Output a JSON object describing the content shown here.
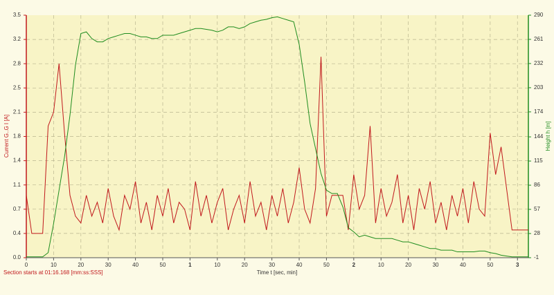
{
  "chart_data": {
    "type": "line",
    "y_label": "Current G..G  I  [A]",
    "y2_label": "Height  h  [m]",
    "x_label": "Time  t  [sec, min]",
    "footer": "Section starts at  01:16.168 [mm:ss:SSS]",
    "grid": true,
    "xlim": [
      0,
      184
    ],
    "xticks": [
      0,
      10,
      20,
      30,
      40,
      50,
      {
        "value": 60,
        "label": "1"
      },
      {
        "value": 70,
        "label": "10"
      },
      {
        "value": 80,
        "label": "20"
      },
      {
        "value": 90,
        "label": "30"
      },
      {
        "value": 100,
        "label": "40"
      },
      {
        "value": 110,
        "label": "50"
      },
      {
        "value": 120,
        "label": "2"
      },
      {
        "value": 130,
        "label": "10"
      },
      {
        "value": 140,
        "label": "20"
      },
      {
        "value": 150,
        "label": "30"
      },
      {
        "value": 160,
        "label": "40"
      },
      {
        "value": 170,
        "label": "50"
      },
      {
        "value": 180,
        "label": "3"
      }
    ],
    "ylim": [
      0,
      3.5
    ],
    "yticks": [
      {
        "value": 0,
        "label": "0.0"
      },
      {
        "value": 0.35,
        "label": "0.4"
      },
      0.7,
      {
        "value": 1.05,
        "label": "1.1"
      },
      1.4,
      {
        "value": 1.75,
        "label": "1.8"
      },
      2.1,
      {
        "value": 2.45,
        "label": "2.5"
      },
      2.8,
      {
        "value": 3.15,
        "label": "3.2"
      },
      3.5
    ],
    "y2lim": [
      -1,
      290
    ],
    "y2ticks": [
      -1,
      28,
      57,
      86,
      115,
      144,
      174,
      203,
      232,
      261,
      290
    ],
    "x": [
      0,
      2,
      4,
      6,
      8,
      10,
      12,
      14,
      16,
      18,
      20,
      22,
      24,
      26,
      28,
      30,
      32,
      34,
      36,
      38,
      40,
      42,
      44,
      46,
      48,
      50,
      52,
      54,
      56,
      58,
      60,
      62,
      64,
      66,
      68,
      70,
      72,
      74,
      76,
      78,
      80,
      82,
      84,
      86,
      88,
      90,
      92,
      94,
      96,
      98,
      100,
      102,
      104,
      106,
      108,
      110,
      112,
      114,
      116,
      118,
      120,
      122,
      124,
      126,
      128,
      130,
      132,
      134,
      136,
      138,
      140,
      142,
      144,
      146,
      148,
      150,
      152,
      154,
      156,
      158,
      160,
      162,
      164,
      166,
      168,
      170,
      172,
      174,
      176,
      178,
      180,
      182,
      184
    ],
    "series": [
      {
        "name": "Current",
        "color": "#c0171b",
        "axis": "y",
        "values": [
          0.9,
          0.35,
          0.35,
          0.35,
          1.9,
          2.1,
          2.8,
          1.8,
          0.9,
          0.6,
          0.5,
          0.9,
          0.6,
          0.8,
          0.5,
          1.0,
          0.6,
          0.4,
          0.9,
          0.7,
          1.1,
          0.5,
          0.8,
          0.4,
          0.9,
          0.6,
          1.0,
          0.5,
          0.8,
          0.7,
          0.4,
          1.1,
          0.6,
          0.9,
          0.5,
          0.8,
          1.0,
          0.4,
          0.7,
          0.9,
          0.5,
          1.1,
          0.6,
          0.8,
          0.4,
          0.9,
          0.6,
          1.0,
          0.5,
          0.8,
          1.3,
          0.7,
          0.5,
          1.0,
          2.9,
          0.6,
          0.9,
          0.9,
          0.9,
          0.4,
          1.2,
          0.7,
          0.9,
          1.9,
          0.5,
          1.0,
          0.6,
          0.8,
          1.2,
          0.5,
          0.9,
          0.4,
          1.0,
          0.7,
          1.1,
          0.5,
          0.8,
          0.4,
          0.9,
          0.6,
          1.0,
          0.5,
          1.1,
          0.7,
          0.6,
          1.8,
          1.2,
          1.6,
          1.0,
          0.4,
          0.4,
          0.4,
          0.4
        ]
      },
      {
        "name": "Height",
        "color": "#1e8c1e",
        "axis": "y2",
        "values": [
          0,
          0,
          0,
          0,
          5,
          40,
          80,
          120,
          170,
          230,
          268,
          270,
          262,
          258,
          258,
          262,
          264,
          266,
          268,
          268,
          266,
          264,
          264,
          262,
          262,
          266,
          266,
          266,
          268,
          270,
          272,
          274,
          274,
          273,
          272,
          270,
          272,
          276,
          276,
          274,
          276,
          280,
          282,
          284,
          285,
          287,
          288,
          286,
          284,
          282,
          255,
          210,
          160,
          130,
          100,
          80,
          76,
          76,
          60,
          35,
          30,
          24,
          26,
          24,
          22,
          22,
          22,
          22,
          20,
          18,
          18,
          16,
          14,
          12,
          10,
          10,
          8,
          8,
          8,
          6,
          6,
          6,
          6,
          7,
          7,
          5,
          4,
          2,
          1,
          0,
          0,
          0,
          0
        ]
      }
    ]
  }
}
